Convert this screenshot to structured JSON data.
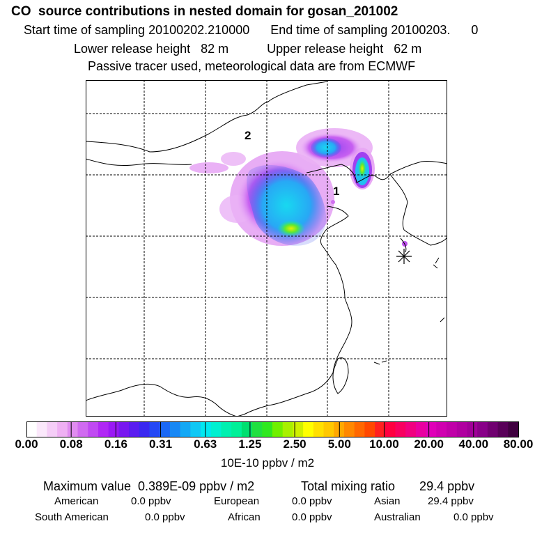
{
  "header": {
    "title": "CO  source contributions in nested domain for gosan_201002",
    "line2": "Start time of sampling 20100202.210000      End time of sampling 20100203.      0",
    "line3": "Lower release height   82 m           Upper release height   62 m",
    "line4": "Passive tracer used, meteorological data are from ECMWF"
  },
  "map": {
    "labels": [
      "2",
      "1"
    ],
    "marker": "receptor-asterisk"
  },
  "colorbar": {
    "ticks": [
      "0.00",
      "0.08",
      "0.16",
      "0.31",
      "0.63",
      "1.25",
      "2.50",
      "5.00",
      "10.00",
      "20.00",
      "40.00",
      "80.00"
    ],
    "unit": "10E-10 ppbv / m2",
    "colors": [
      "#ffffff",
      "#fbe8fb",
      "#f5cdf7",
      "#efb0f3",
      "#e08cf0",
      "#d06bf0",
      "#c04af2",
      "#b028f5",
      "#9a18f5",
      "#7818f0",
      "#5a1cf0",
      "#3a28f0",
      "#2448f5",
      "#1c68f5",
      "#1888f5",
      "#14a8f5",
      "#10c8f5",
      "#00e8f0",
      "#00f0d0",
      "#00f0b0",
      "#00f098",
      "#00e070",
      "#20e040",
      "#30e820",
      "#70f000",
      "#a8f000",
      "#d0f000",
      "#ffff00",
      "#ffe000",
      "#ffc800",
      "#ffa800",
      "#ff8800",
      "#ff6800",
      "#ff4800",
      "#ff2020",
      "#ff0040",
      "#f80060",
      "#f00080",
      "#e800a0",
      "#e000b8",
      "#d000b0",
      "#c000a8",
      "#b000a0",
      "#a00098",
      "#880088",
      "#700070",
      "#580058",
      "#400040"
    ]
  },
  "stats": {
    "max_label": "Maximum value  0.389E-09 ppbv / m2",
    "total_label": "Total mixing ratio       29.4 ppbv",
    "american_label": "American",
    "american_value": "0.0 ppbv",
    "european_label": "European",
    "european_value": "0.0 ppbv",
    "asian_label": "Asian",
    "asian_value": "29.4 ppbv",
    "south_american_label": "South American",
    "south_american_value": "0.0 ppbv",
    "african_label": "African",
    "african_value": "0.0 ppbv",
    "australian_label": "Australian",
    "australian_value": "0.0 ppbv"
  }
}
